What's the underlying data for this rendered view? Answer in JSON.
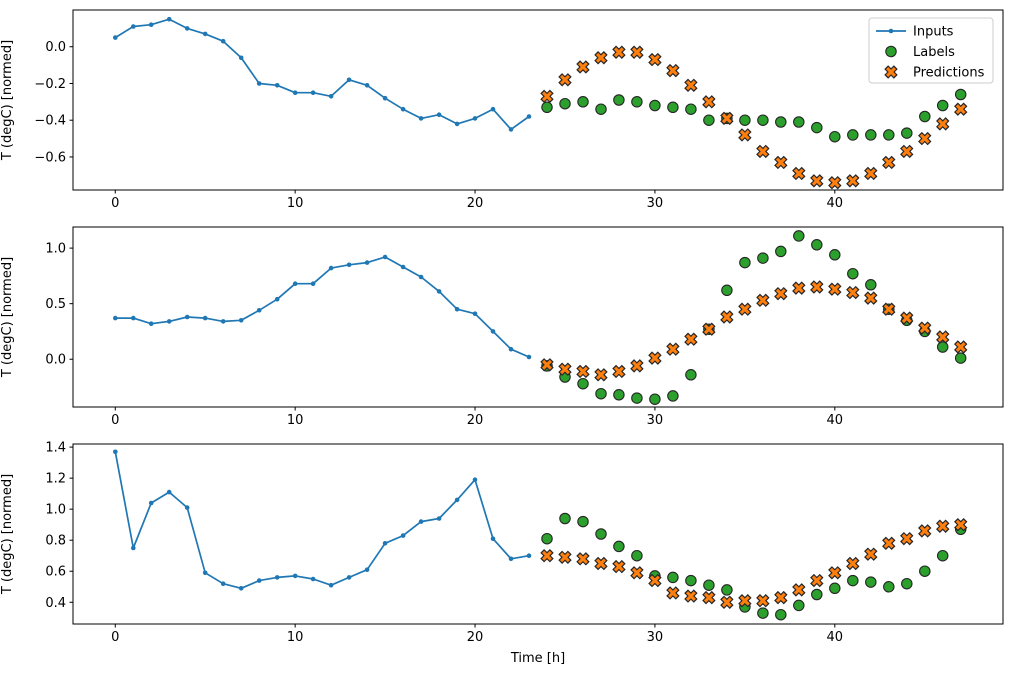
{
  "figure": {
    "background": "#ffffff",
    "xlabel": "Time [h]",
    "marker_edge_color": "#262626",
    "legend": {
      "position": "upper right",
      "entries": [
        {
          "label": "Inputs",
          "marker": "line-dot",
          "color": "#1f77b4"
        },
        {
          "label": "Labels",
          "marker": "circle",
          "color": "#2ca02c"
        },
        {
          "label": "Predictions",
          "marker": "x",
          "color": "#ff7f0e"
        }
      ]
    }
  },
  "chart_data": [
    {
      "type": "line+scatter",
      "title": "",
      "ylabel": "T (degC) [normed]",
      "xlim": [
        -2.35,
        49.35
      ],
      "ylim": [
        -0.78,
        0.2
      ],
      "xticks": [
        0,
        10,
        20,
        30,
        40
      ],
      "xtick_labels": [
        "0",
        "10",
        "20",
        "30",
        "40"
      ],
      "yticks": [
        0.0,
        -0.2,
        -0.4,
        -0.6
      ],
      "ytick_labels": [
        "0.0",
        "−0.2",
        "−0.4",
        "−0.6"
      ],
      "grid": false,
      "series": [
        {
          "name": "Inputs",
          "type": "line",
          "color": "#1f77b4",
          "x": [
            0,
            1,
            2,
            3,
            4,
            5,
            6,
            7,
            8,
            9,
            10,
            11,
            12,
            13,
            14,
            15,
            16,
            17,
            18,
            19,
            20,
            21,
            22,
            23
          ],
          "y": [
            0.05,
            0.11,
            0.12,
            0.15,
            0.1,
            0.07,
            0.03,
            -0.06,
            -0.2,
            -0.21,
            -0.25,
            -0.25,
            -0.27,
            -0.18,
            -0.21,
            -0.28,
            -0.34,
            -0.39,
            -0.37,
            -0.42,
            -0.39,
            -0.34,
            -0.45,
            -0.38
          ]
        },
        {
          "name": "Labels",
          "type": "scatter-circle",
          "color": "#2ca02c",
          "x": [
            24,
            25,
            26,
            27,
            28,
            29,
            30,
            31,
            32,
            33,
            34,
            35,
            36,
            37,
            38,
            39,
            40,
            41,
            42,
            43,
            44,
            45,
            46,
            47
          ],
          "y": [
            -0.33,
            -0.31,
            -0.3,
            -0.34,
            -0.29,
            -0.3,
            -0.32,
            -0.33,
            -0.34,
            -0.4,
            -0.39,
            -0.4,
            -0.4,
            -0.41,
            -0.41,
            -0.44,
            -0.49,
            -0.48,
            -0.48,
            -0.48,
            -0.47,
            -0.38,
            -0.32,
            -0.26
          ]
        },
        {
          "name": "Predictions",
          "type": "scatter-x",
          "color": "#ff7f0e",
          "x": [
            24,
            25,
            26,
            27,
            28,
            29,
            30,
            31,
            32,
            33,
            34,
            35,
            36,
            37,
            38,
            39,
            40,
            41,
            42,
            43,
            44,
            45,
            46,
            47
          ],
          "y": [
            -0.27,
            -0.18,
            -0.11,
            -0.06,
            -0.03,
            -0.03,
            -0.07,
            -0.13,
            -0.21,
            -0.3,
            -0.39,
            -0.48,
            -0.57,
            -0.63,
            -0.69,
            -0.73,
            -0.74,
            -0.73,
            -0.69,
            -0.63,
            -0.57,
            -0.5,
            -0.42,
            -0.34
          ]
        }
      ]
    },
    {
      "type": "line+scatter",
      "title": "",
      "ylabel": "T (degC) [normed]",
      "xlim": [
        -2.35,
        49.35
      ],
      "ylim": [
        -0.43,
        1.19
      ],
      "xticks": [
        0,
        10,
        20,
        30,
        40
      ],
      "xtick_labels": [
        "0",
        "10",
        "20",
        "30",
        "40"
      ],
      "yticks": [
        0.0,
        0.5,
        1.0
      ],
      "ytick_labels": [
        "0.0",
        "0.5",
        "1.0"
      ],
      "grid": false,
      "series": [
        {
          "name": "Inputs",
          "type": "line",
          "color": "#1f77b4",
          "x": [
            0,
            1,
            2,
            3,
            4,
            5,
            6,
            7,
            8,
            9,
            10,
            11,
            12,
            13,
            14,
            15,
            16,
            17,
            18,
            19,
            20,
            21,
            22,
            23
          ],
          "y": [
            0.37,
            0.37,
            0.32,
            0.34,
            0.38,
            0.37,
            0.34,
            0.35,
            0.44,
            0.54,
            0.68,
            0.68,
            0.82,
            0.85,
            0.87,
            0.92,
            0.83,
            0.74,
            0.61,
            0.45,
            0.41,
            0.25,
            0.09,
            0.02
          ]
        },
        {
          "name": "Labels",
          "type": "scatter-circle",
          "color": "#2ca02c",
          "x": [
            24,
            25,
            26,
            27,
            28,
            29,
            30,
            31,
            32,
            33,
            34,
            35,
            36,
            37,
            38,
            39,
            40,
            41,
            42,
            43,
            44,
            45,
            46,
            47
          ],
          "y": [
            -0.06,
            -0.16,
            -0.22,
            -0.31,
            -0.32,
            -0.35,
            -0.36,
            -0.33,
            -0.14,
            0.27,
            0.62,
            0.87,
            0.91,
            0.97,
            1.11,
            1.03,
            0.94,
            0.77,
            0.67,
            0.45,
            0.35,
            0.25,
            0.11,
            0.01
          ]
        },
        {
          "name": "Predictions",
          "type": "scatter-x",
          "color": "#ff7f0e",
          "x": [
            24,
            25,
            26,
            27,
            28,
            29,
            30,
            31,
            32,
            33,
            34,
            35,
            36,
            37,
            38,
            39,
            40,
            41,
            42,
            43,
            44,
            45,
            46,
            47
          ],
          "y": [
            -0.05,
            -0.09,
            -0.11,
            -0.14,
            -0.11,
            -0.06,
            0.01,
            0.09,
            0.18,
            0.27,
            0.38,
            0.45,
            0.53,
            0.59,
            0.64,
            0.65,
            0.63,
            0.6,
            0.55,
            0.45,
            0.37,
            0.28,
            0.2,
            0.11
          ]
        }
      ]
    },
    {
      "type": "line+scatter",
      "title": "",
      "ylabel": "T (degC) [normed]",
      "xlabel": "Time [h]",
      "xlim": [
        -2.35,
        49.35
      ],
      "ylim": [
        0.26,
        1.42
      ],
      "xticks": [
        0,
        10,
        20,
        30,
        40
      ],
      "xtick_labels": [
        "0",
        "10",
        "20",
        "30",
        "40"
      ],
      "yticks": [
        0.4,
        0.6,
        0.8,
        1.0,
        1.2,
        1.4
      ],
      "ytick_labels": [
        "0.4",
        "0.6",
        "0.8",
        "1.0",
        "1.2",
        "1.4"
      ],
      "grid": false,
      "series": [
        {
          "name": "Inputs",
          "type": "line",
          "color": "#1f77b4",
          "x": [
            0,
            1,
            2,
            3,
            4,
            5,
            6,
            7,
            8,
            9,
            10,
            11,
            12,
            13,
            14,
            15,
            16,
            17,
            18,
            19,
            20,
            21,
            22,
            23
          ],
          "y": [
            1.37,
            0.75,
            1.04,
            1.11,
            1.01,
            0.59,
            0.52,
            0.49,
            0.54,
            0.56,
            0.57,
            0.55,
            0.51,
            0.56,
            0.61,
            0.78,
            0.83,
            0.92,
            0.94,
            1.06,
            1.19,
            0.81,
            0.68,
            0.7
          ]
        },
        {
          "name": "Labels",
          "type": "scatter-circle",
          "color": "#2ca02c",
          "x": [
            24,
            25,
            26,
            27,
            28,
            29,
            30,
            31,
            32,
            33,
            34,
            35,
            36,
            37,
            38,
            39,
            40,
            41,
            42,
            43,
            44,
            45,
            46,
            47
          ],
          "y": [
            0.81,
            0.94,
            0.92,
            0.84,
            0.76,
            0.7,
            0.57,
            0.56,
            0.54,
            0.51,
            0.48,
            0.37,
            0.33,
            0.32,
            0.38,
            0.45,
            0.49,
            0.54,
            0.53,
            0.5,
            0.52,
            0.6,
            0.7,
            0.87
          ]
        },
        {
          "name": "Predictions",
          "type": "scatter-x",
          "color": "#ff7f0e",
          "x": [
            24,
            25,
            26,
            27,
            28,
            29,
            30,
            31,
            32,
            33,
            34,
            35,
            36,
            37,
            38,
            39,
            40,
            41,
            42,
            43,
            44,
            45,
            46,
            47
          ],
          "y": [
            0.7,
            0.69,
            0.68,
            0.65,
            0.63,
            0.59,
            0.54,
            0.46,
            0.44,
            0.43,
            0.4,
            0.41,
            0.41,
            0.43,
            0.48,
            0.54,
            0.59,
            0.65,
            0.71,
            0.78,
            0.81,
            0.86,
            0.89,
            0.9
          ]
        }
      ]
    }
  ]
}
